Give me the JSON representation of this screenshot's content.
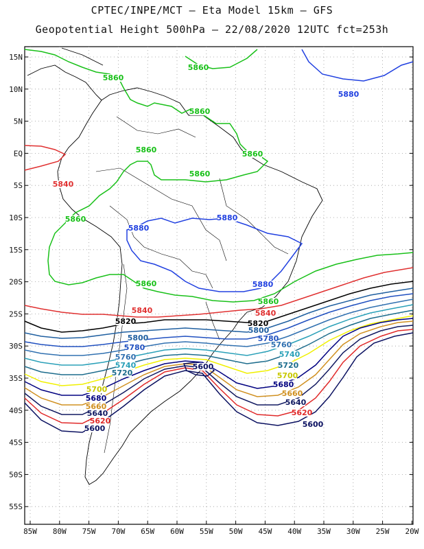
{
  "header": {
    "line1": "CPTEC/INPE/MCT –  Eta Model 15km – GFS",
    "line2": "Geopotential Height 500hPa – 22/08/2020 12UTC fct=253h"
  },
  "axes": {
    "lat_labels": [
      "15N",
      "10N",
      "5N",
      "EQ",
      "5S",
      "10S",
      "15S",
      "20S",
      "25S",
      "30S",
      "35S",
      "40S",
      "45S",
      "50S",
      "55S"
    ],
    "lon_labels": [
      "85W",
      "80W",
      "75W",
      "70W",
      "65W",
      "60W",
      "55W",
      "50W",
      "45W",
      "40W",
      "35W",
      "30W",
      "25W",
      "20W"
    ]
  },
  "colors": {
    "c5880": "#2040e0",
    "c5860": "#18c018",
    "c5840": "#e03030",
    "c5820": "#000000",
    "c5800": "#1f5fa0",
    "c5780": "#2050c0",
    "c5760": "#3070b0",
    "c5740": "#2aa0b8",
    "c5720": "#1c6c8c",
    "c5700": "#f0f000",
    "c5680": "#000080",
    "c5660": "#d09020",
    "c5640": "#101860",
    "c5620": "#e02828",
    "c5600": "#0a1060"
  },
  "contour_labels": [
    {
      "text": "5860",
      "color": "#18c018"
    },
    {
      "text": "5860",
      "color": "#18c018"
    },
    {
      "text": "5860",
      "color": "#18c018"
    },
    {
      "text": "5860",
      "color": "#18c018"
    },
    {
      "text": "5860",
      "color": "#18c018"
    },
    {
      "text": "5860",
      "color": "#18c018"
    },
    {
      "text": "5860",
      "color": "#18c018"
    },
    {
      "text": "5860",
      "color": "#18c018"
    },
    {
      "text": "5860",
      "color": "#18c018"
    },
    {
      "text": "5880",
      "color": "#2040e0"
    },
    {
      "text": "5880",
      "color": "#2040e0"
    },
    {
      "text": "5880",
      "color": "#2040e0"
    },
    {
      "text": "5880",
      "color": "#2040e0"
    },
    {
      "text": "5840",
      "color": "#e03030"
    },
    {
      "text": "5840",
      "color": "#e03030"
    },
    {
      "text": "5840",
      "color": "#e03030"
    },
    {
      "text": "5820",
      "color": "#000000"
    },
    {
      "text": "5820",
      "color": "#000000"
    },
    {
      "text": "5800",
      "color": "#1f5fa0"
    },
    {
      "text": "5800",
      "color": "#1f5fa0"
    },
    {
      "text": "5780",
      "color": "#2050c0"
    },
    {
      "text": "5780",
      "color": "#2050c0"
    },
    {
      "text": "5760",
      "color": "#3070b0"
    },
    {
      "text": "5760",
      "color": "#3070b0"
    },
    {
      "text": "5740",
      "color": "#2aa0b8"
    },
    {
      "text": "5740",
      "color": "#2aa0b8"
    },
    {
      "text": "5720",
      "color": "#1c6c8c"
    },
    {
      "text": "5720",
      "color": "#1c6c8c"
    },
    {
      "text": "5700",
      "color": "#c8c800"
    },
    {
      "text": "5700",
      "color": "#c8c800"
    },
    {
      "text": "5680",
      "color": "#000080"
    },
    {
      "text": "5680",
      "color": "#000080"
    },
    {
      "text": "5660",
      "color": "#d09020"
    },
    {
      "text": "5660",
      "color": "#d09020"
    },
    {
      "text": "5640",
      "color": "#101860"
    },
    {
      "text": "5640",
      "color": "#101860"
    },
    {
      "text": "5620",
      "color": "#e02828"
    },
    {
      "text": "5620",
      "color": "#e02828"
    },
    {
      "text": "5600",
      "color": "#0a1060"
    },
    {
      "text": "5600",
      "color": "#0a1060"
    },
    {
      "text": "5600",
      "color": "#0a1060"
    }
  ]
}
